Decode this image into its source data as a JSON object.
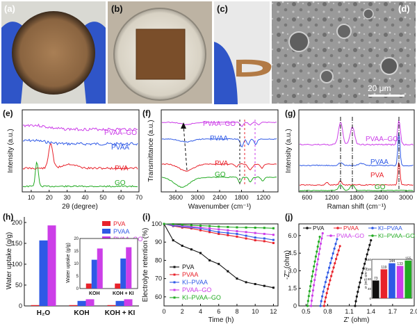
{
  "panel_labels": [
    "(a)",
    "(b)",
    "(c)",
    "(d)",
    "(e)",
    "(f)",
    "(g)",
    "(h)",
    "(i)",
    "(j)"
  ],
  "scale_bar": "20 μm",
  "colors": {
    "black": "#111111",
    "red": "#e8222b",
    "blue": "#2e59e6",
    "magenta": "#cc3ee8",
    "green": "#22aa22"
  },
  "chart_data": [
    {
      "id": "e",
      "type": "line",
      "xlabel": "2θ (degree)",
      "ylabel": "Intensity (a.u.)",
      "xlim": [
        5,
        70
      ],
      "xticks": [
        10,
        20,
        30,
        40,
        50,
        60,
        70
      ],
      "series": [
        {
          "name": "PVAA–GO",
          "color": "#cc3ee8"
        },
        {
          "name": "PVAA",
          "color": "#2e59e6"
        },
        {
          "name": "PVA",
          "color": "#e8222b"
        },
        {
          "name": "GO",
          "color": "#22aa22"
        }
      ]
    },
    {
      "id": "f",
      "type": "line",
      "xlabel": "Wavenumber (cm⁻¹)",
      "ylabel": "Transmittance (a.u.)",
      "xlim": [
        4000,
        800
      ],
      "xticks": [
        3600,
        3000,
        2400,
        1800,
        1200
      ],
      "series": [
        {
          "name": "PVAA–GO",
          "color": "#cc3ee8"
        },
        {
          "name": "PVAA",
          "color": "#2e59e6"
        },
        {
          "name": "PVA",
          "color": "#e8222b"
        },
        {
          "name": "GO",
          "color": "#22aa22"
        }
      ]
    },
    {
      "id": "g",
      "type": "line",
      "xlabel": "Raman shift (cm⁻¹)",
      "ylabel": "Intensity (a.u.)",
      "xlim": [
        400,
        3200
      ],
      "xticks": [
        600,
        1200,
        1800,
        2400,
        3000
      ],
      "series": [
        {
          "name": "PVAA–GO",
          "color": "#cc3ee8"
        },
        {
          "name": "PVAA",
          "color": "#2e59e6"
        },
        {
          "name": "PVA",
          "color": "#e8222b"
        },
        {
          "name": "GO",
          "color": "#22aa22"
        }
      ]
    },
    {
      "id": "h",
      "type": "bar",
      "ylabel": "Water uptake (g/g)",
      "ylim": [
        0,
        200
      ],
      "yticks": [
        0,
        50,
        100,
        150,
        200
      ],
      "categories": [
        "H₂O",
        "KOH",
        "KOH + KI"
      ],
      "series": [
        {
          "name": "PVA",
          "color": "#e8222b",
          "values": [
            2,
            2,
            2
          ]
        },
        {
          "name": "PVAA",
          "color": "#2e59e6",
          "values": [
            157,
            12,
            12
          ]
        },
        {
          "name": "PVAA–GO",
          "color": "#cc3ee8",
          "values": [
            193,
            16,
            16
          ]
        }
      ],
      "inset": {
        "ylabel": "Water uptake (g/g)",
        "ylim": [
          0,
          20
        ],
        "yticks": [
          0,
          5,
          10,
          15,
          20
        ],
        "categories": [
          "KOH",
          "KOH + KI"
        ],
        "series": [
          {
            "name": "PVA",
            "color": "#e8222b",
            "values": [
              2,
              2
            ]
          },
          {
            "name": "PVAA",
            "color": "#2e59e6",
            "values": [
              11.5,
              12
            ]
          },
          {
            "name": "PVAA–GO",
            "color": "#cc3ee8",
            "values": [
              16,
              16.5
            ]
          }
        ]
      }
    },
    {
      "id": "i",
      "type": "line",
      "xlabel": "Time (h)",
      "ylabel": "Electrolyte retention (%)",
      "xlim": [
        0,
        12.5
      ],
      "ylim": [
        55,
        100
      ],
      "xticks": [
        0,
        2,
        4,
        6,
        8,
        10,
        12
      ],
      "yticks": [
        60,
        70,
        80,
        90,
        100
      ],
      "x": [
        0,
        1,
        2,
        3,
        4,
        5,
        6,
        7,
        8,
        9,
        10,
        11,
        12
      ],
      "series": [
        {
          "name": "PVA",
          "color": "#111111",
          "values": [
            100,
            91,
            88,
            86,
            84,
            80,
            78,
            74,
            70,
            68,
            67,
            66,
            65
          ]
        },
        {
          "name": "PVAA",
          "color": "#e8222b",
          "values": [
            100,
            98.8,
            98,
            97.5,
            96.5,
            95.5,
            94.5,
            93.8,
            93,
            92,
            91,
            90.5,
            89.5
          ]
        },
        {
          "name": "KI–PVAA",
          "color": "#2e59e6",
          "values": [
            100,
            99,
            98.5,
            98,
            97.5,
            96.5,
            95.5,
            95,
            94.5,
            93.5,
            92.5,
            92,
            91.2
          ]
        },
        {
          "name": "PVAA–GO",
          "color": "#cc3ee8",
          "values": [
            100,
            99.5,
            99,
            98.5,
            98,
            97.5,
            97,
            96.5,
            96,
            95.5,
            95,
            94.5,
            94
          ]
        },
        {
          "name": "KI–PVAA–GO",
          "color": "#22aa22",
          "values": [
            100,
            99.8,
            99.5,
            99.2,
            99,
            98.8,
            98.5,
            98.3,
            98.1,
            98,
            97.9,
            97.8,
            97.6
          ]
        }
      ]
    },
    {
      "id": "j",
      "type": "line",
      "xlabel": "Z' (ohm)",
      "ylabel": "-Z'' (ohm)",
      "xlim": [
        0.4,
        2.0
      ],
      "ylim": [
        0,
        7
      ],
      "xticks": [
        0.5,
        0.8,
        1.1,
        1.4,
        1.7,
        2.0
      ],
      "yticks": [
        0,
        1.5,
        3.0,
        4.5,
        6.0
      ],
      "series": [
        {
          "name": "PVA",
          "color": "#111111",
          "x0": 1.18,
          "x1": 1.4,
          "ytop": 5.6
        },
        {
          "name": "PVAA",
          "color": "#e8222b",
          "x0": 0.75,
          "x1": 0.97,
          "ytop": 5.1
        },
        {
          "name": "KI–PVAA",
          "color": "#2e59e6",
          "x0": 0.7,
          "x1": 0.93,
          "ytop": 5.7
        },
        {
          "name": "PVAA–GO",
          "color": "#cc3ee8",
          "x0": 0.57,
          "x1": 0.73,
          "ytop": 6.2
        },
        {
          "name": "KI–PVAA–GO",
          "color": "#22aa22",
          "x0": 0.52,
          "x1": 0.69,
          "ytop": 5.9
        }
      ],
      "inset": {
        "ylabel": "σ (mS cm⁻¹)",
        "ylim": [
          0,
          160
        ],
        "yticks": [
          0,
          40,
          80,
          120,
          160
        ],
        "values": [
          73,
          119,
          144,
          133,
          155
        ],
        "colors": [
          "#111111",
          "#e8222b",
          "#2e59e6",
          "#cc3ee8",
          "#22aa22"
        ]
      }
    }
  ]
}
